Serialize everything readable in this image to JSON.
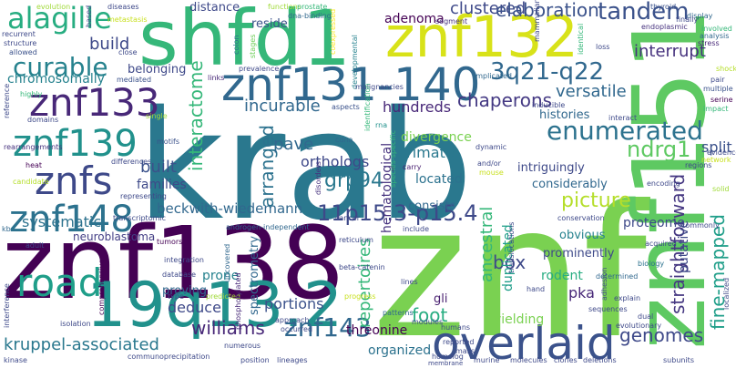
{
  "words": [
    {
      "text": "krab",
      "color": "#2a788e"
    },
    {
      "text": "znf",
      "color": "#7ad151"
    },
    {
      "text": "znf138",
      "color": "#440154"
    },
    {
      "text": "shfd1",
      "color": "#35b779"
    },
    {
      "text": "znf151",
      "color": "#5ec962"
    },
    {
      "text": "19q13.2",
      "color": "#21918c"
    },
    {
      "text": "znf132",
      "color": "#d8e219"
    },
    {
      "text": "znf131-140",
      "color": "#31688e"
    },
    {
      "text": "overlaid",
      "color": "#3b528b"
    },
    {
      "text": "road",
      "color": "#1f9e89"
    },
    {
      "text": "znf133",
      "color": "#482878"
    },
    {
      "text": "znf139",
      "color": "#21918c"
    },
    {
      "text": "znfs",
      "color": "#3e4989"
    },
    {
      "text": "znf148",
      "color": "#2c728e"
    },
    {
      "text": "alagille",
      "color": "#27ad81"
    },
    {
      "text": "curable",
      "color": "#26828e"
    },
    {
      "text": "3q21-q22",
      "color": "#31688e"
    },
    {
      "text": "tandem",
      "color": "#3b528b"
    },
    {
      "text": "enumerated",
      "color": "#2c728e"
    },
    {
      "text": "11p15.3-p15.4",
      "color": "#3e4989"
    },
    {
      "text": "beckwith-wiedemann",
      "color": "#31688e"
    },
    {
      "text": "kruppel-associated",
      "color": "#2a788e"
    },
    {
      "text": "williams",
      "color": "#482878"
    },
    {
      "text": "znf143",
      "color": "#31688e"
    },
    {
      "text": "ndrg1",
      "color": "#5ec962"
    },
    {
      "text": "straightforward",
      "color": "#453781"
    },
    {
      "text": "fine-mapped",
      "color": "#1f9e89"
    },
    {
      "text": "picture",
      "color": "#b5de2b"
    },
    {
      "text": "genomes",
      "color": "#3e4989"
    },
    {
      "text": "interrupt",
      "color": "#46327e"
    },
    {
      "text": "versatile",
      "color": "#31688e"
    },
    {
      "text": "chaperons",
      "color": "#443983"
    },
    {
      "text": "hundreds",
      "color": "#482878"
    },
    {
      "text": "incurable",
      "color": "#31688e"
    },
    {
      "text": "clustered",
      "color": "#3e4989"
    },
    {
      "text": "elaboration",
      "color": "#3b528b"
    },
    {
      "text": "adenoma",
      "color": "#440154"
    },
    {
      "text": "build",
      "color": "#3e4989"
    },
    {
      "text": "chromosomally",
      "color": "#26828e"
    },
    {
      "text": "distance",
      "color": "#3e4989"
    },
    {
      "text": "reside",
      "color": "#3b528b"
    },
    {
      "text": "belonging",
      "color": "#3e4989"
    },
    {
      "text": "interactome",
      "color": "#35b779"
    },
    {
      "text": "arranged",
      "color": "#2c728e"
    },
    {
      "text": "grp94",
      "color": "#2a788e"
    },
    {
      "text": "pave",
      "color": "#31688e"
    },
    {
      "text": "orthologs",
      "color": "#3e4989"
    },
    {
      "text": "built",
      "color": "#3b528b"
    },
    {
      "text": "families",
      "color": "#3e4989"
    },
    {
      "text": "systematic",
      "color": "#2c728e"
    },
    {
      "text": "neuroblastoma",
      "color": "#433e85"
    },
    {
      "text": "deduce",
      "color": "#3e4989"
    },
    {
      "text": "proving",
      "color": "#31688e"
    },
    {
      "text": "prone",
      "color": "#26828e"
    },
    {
      "text": "portions",
      "color": "#3b528b"
    },
    {
      "text": "spectrometry",
      "color": "#31688e"
    },
    {
      "text": "threonine",
      "color": "#440154"
    },
    {
      "text": "repertoires",
      "color": "#35b779"
    },
    {
      "text": "foot",
      "color": "#27ad81"
    },
    {
      "text": "box",
      "color": "#3e4989"
    },
    {
      "text": "ancestral",
      "color": "#35b779"
    },
    {
      "text": "duplicated",
      "color": "#1f9e89"
    },
    {
      "text": "consists",
      "color": "#31688e"
    },
    {
      "text": "primate",
      "color": "#2a788e"
    },
    {
      "text": "located",
      "color": "#2c728e"
    },
    {
      "text": "divergence",
      "color": "#7ad151"
    },
    {
      "text": "hematological",
      "color": "#46327e"
    },
    {
      "text": "histories",
      "color": "#31688e"
    },
    {
      "text": "intriguingly",
      "color": "#3e4989"
    },
    {
      "text": "considerably",
      "color": "#31688e"
    },
    {
      "text": "split",
      "color": "#3b528b"
    },
    {
      "text": "proteome",
      "color": "#3e4989"
    },
    {
      "text": "pka",
      "color": "#482878"
    },
    {
      "text": "rodent",
      "color": "#27ad81"
    },
    {
      "text": "prominently",
      "color": "#3e4989"
    },
    {
      "text": "obvious",
      "color": "#26828e"
    },
    {
      "text": "yielding",
      "color": "#7ad151"
    },
    {
      "text": "gli",
      "color": "#481f70"
    },
    {
      "text": "organized",
      "color": "#2c728e"
    },
    {
      "text": "putative",
      "color": "#3e4989"
    },
    {
      "text": "evolution",
      "color": "#a0da39"
    },
    {
      "text": "functions",
      "color": "#a0da39"
    },
    {
      "text": "metastasis",
      "color": "#c8e020"
    },
    {
      "text": "prostate",
      "color": "#35b779"
    },
    {
      "text": "thyroid",
      "color": "#3b528b"
    },
    {
      "text": "dna-binding",
      "color": "#31688e"
    },
    {
      "text": "coexpressed",
      "color": "#fde725"
    },
    {
      "text": "segment",
      "color": "#46327e"
    },
    {
      "text": "mammalian",
      "color": "#3e4989"
    },
    {
      "text": "display",
      "color": "#31688e"
    },
    {
      "text": "endoplasmic",
      "color": "#46327e"
    },
    {
      "text": "structure",
      "color": "#3e4989"
    },
    {
      "text": "recurrent",
      "color": "#3e4989"
    },
    {
      "text": "allowed",
      "color": "#3b528b"
    },
    {
      "text": "close",
      "color": "#3e4989"
    },
    {
      "text": "colon",
      "color": "#2c728e"
    },
    {
      "text": "stages",
      "color": "#6ece58"
    },
    {
      "text": "developmental",
      "color": "#26828e"
    },
    {
      "text": "identical",
      "color": "#35b779"
    },
    {
      "text": "loss",
      "color": "#3e4989"
    },
    {
      "text": "stress",
      "color": "#482878"
    },
    {
      "text": "shock",
      "color": "#b5de2b"
    },
    {
      "text": "finally",
      "color": "#3e4989"
    },
    {
      "text": "involved",
      "color": "#35b779"
    },
    {
      "text": "analysis",
      "color": "#31688e"
    },
    {
      "text": "prevalence",
      "color": "#3e4989"
    },
    {
      "text": "links",
      "color": "#482878"
    },
    {
      "text": "mediated",
      "color": "#3b528b"
    },
    {
      "text": "malignancies",
      "color": "#3e4989"
    },
    {
      "text": "implicated",
      "color": "#31688e"
    },
    {
      "text": "inducible",
      "color": "#3e4989"
    },
    {
      "text": "identification",
      "color": "#35b779"
    },
    {
      "text": "serine",
      "color": "#440154"
    },
    {
      "text": "multiple",
      "color": "#3b528b"
    },
    {
      "text": "pair",
      "color": "#3e4989"
    },
    {
      "text": "impact",
      "color": "#35b779"
    },
    {
      "text": "reference",
      "color": "#3e4989"
    },
    {
      "text": "highly",
      "color": "#35b779"
    },
    {
      "text": "domains",
      "color": "#3e4989"
    },
    {
      "text": "single",
      "color": "#a0da39"
    },
    {
      "text": "aspects",
      "color": "#3b528b"
    },
    {
      "text": "rna",
      "color": "#21918c"
    },
    {
      "text": "interact",
      "color": "#3e4989"
    },
    {
      "text": "rearrangements",
      "color": "#46327e"
    },
    {
      "text": "motifs",
      "color": "#3b528b"
    },
    {
      "text": "cdna",
      "color": "#31688e"
    },
    {
      "text": "species-specific",
      "color": "#35b779"
    },
    {
      "text": "dynamic",
      "color": "#3e4989"
    },
    {
      "text": "heat",
      "color": "#440154"
    },
    {
      "text": "differences",
      "color": "#3e4989"
    },
    {
      "text": "candidate",
      "color": "#b5de2b"
    },
    {
      "text": "representing",
      "color": "#3e4989"
    },
    {
      "text": "regions",
      "color": "#3e4989"
    },
    {
      "text": "network",
      "color": "#c8e020"
    },
    {
      "text": "evidence",
      "color": "#3e4989"
    },
    {
      "text": "solid",
      "color": "#a0da39"
    },
    {
      "text": "disorders",
      "color": "#46327e"
    },
    {
      "text": "carry",
      "color": "#481f70"
    },
    {
      "text": "encoding",
      "color": "#3e4989"
    },
    {
      "text": "conservation",
      "color": "#3e4989"
    },
    {
      "text": "cancer",
      "color": "#3e4989"
    },
    {
      "text": "commonly",
      "color": "#3e4989"
    },
    {
      "text": "tumors",
      "color": "#440154"
    },
    {
      "text": "transcriptomic",
      "color": "#3e4989"
    },
    {
      "text": "androgen-independent",
      "color": "#31688e"
    },
    {
      "text": "kb",
      "color": "#31688e"
    },
    {
      "text": "adult",
      "color": "#3e4989"
    },
    {
      "text": "include",
      "color": "#3e4989"
    },
    {
      "text": "reticulum",
      "color": "#3e4989"
    },
    {
      "text": "acquired",
      "color": "#3e4989"
    },
    {
      "text": "biology",
      "color": "#2c728e"
    },
    {
      "text": "integration",
      "color": "#3e4989"
    },
    {
      "text": "database",
      "color": "#3e4989"
    },
    {
      "text": "predicted",
      "color": "#a0da39"
    },
    {
      "text": "uncovered",
      "color": "#31688e"
    },
    {
      "text": "beta-catenin",
      "color": "#3e4989"
    },
    {
      "text": "progress",
      "color": "#c8e020"
    },
    {
      "text": "hand",
      "color": "#3e4989"
    },
    {
      "text": "determined",
      "color": "#31688e"
    },
    {
      "text": "explain",
      "color": "#3e4989"
    },
    {
      "text": "localized",
      "color": "#3e4989"
    },
    {
      "text": "interference",
      "color": "#3e4989"
    },
    {
      "text": "type",
      "color": "#3e4989"
    },
    {
      "text": "isolation",
      "color": "#3e4989"
    },
    {
      "text": "comprehensive",
      "color": "#440154"
    },
    {
      "text": "diseases",
      "color": "#3e4989"
    },
    {
      "text": "approach",
      "color": "#3e4989"
    },
    {
      "text": "phosphorylated",
      "color": "#482878"
    },
    {
      "text": "occurred",
      "color": "#3e4989"
    },
    {
      "text": "modules",
      "color": "#3e4989"
    },
    {
      "text": "lines",
      "color": "#3e4989"
    },
    {
      "text": "patterns",
      "color": "#31688e"
    },
    {
      "text": "humans",
      "color": "#3e4989"
    },
    {
      "text": "reported",
      "color": "#3e4989"
    },
    {
      "text": "homolog",
      "color": "#3e4989"
    },
    {
      "text": "translocations",
      "color": "#3e4989"
    },
    {
      "text": "adhesion",
      "color": "#3e4989"
    },
    {
      "text": "sequences",
      "color": "#3e4989"
    },
    {
      "text": "evolutionary",
      "color": "#3e4989"
    },
    {
      "text": "dual",
      "color": "#3e4989"
    },
    {
      "text": "communoprecipitation",
      "color": "#3e4989"
    },
    {
      "text": "kinase",
      "color": "#3e4989"
    },
    {
      "text": "position",
      "color": "#3e4989"
    },
    {
      "text": "lineages",
      "color": "#3e4989"
    },
    {
      "text": "numerous",
      "color": "#3e4989"
    },
    {
      "text": "membrane",
      "color": "#3e4989"
    },
    {
      "text": "murine",
      "color": "#3e4989"
    },
    {
      "text": "molecules",
      "color": "#3e4989"
    },
    {
      "text": "clones",
      "color": "#3e4989"
    },
    {
      "text": "deletions",
      "color": "#3e4989"
    },
    {
      "text": "subunits",
      "color": "#3e4989"
    },
    {
      "text": "mass",
      "color": "#3e4989"
    },
    {
      "text": "mouse",
      "color": "#c8e020"
    },
    {
      "text": "and/or",
      "color": "#3e4989"
    },
    {
      "text": "based",
      "color": "#3e4989"
    }
  ]
}
